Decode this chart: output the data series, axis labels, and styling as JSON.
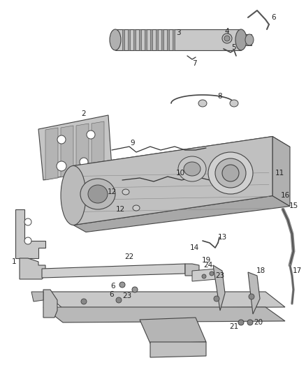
{
  "bg_color": "#ffffff",
  "fig_width": 4.38,
  "fig_height": 5.33,
  "dpi": 100,
  "line_color": "#444444",
  "label_color": "#222222",
  "font_size": 7.5,
  "part_fill": "#d0d0d0",
  "part_fill_dark": "#aaaaaa",
  "part_fill_light": "#e8e8e8"
}
